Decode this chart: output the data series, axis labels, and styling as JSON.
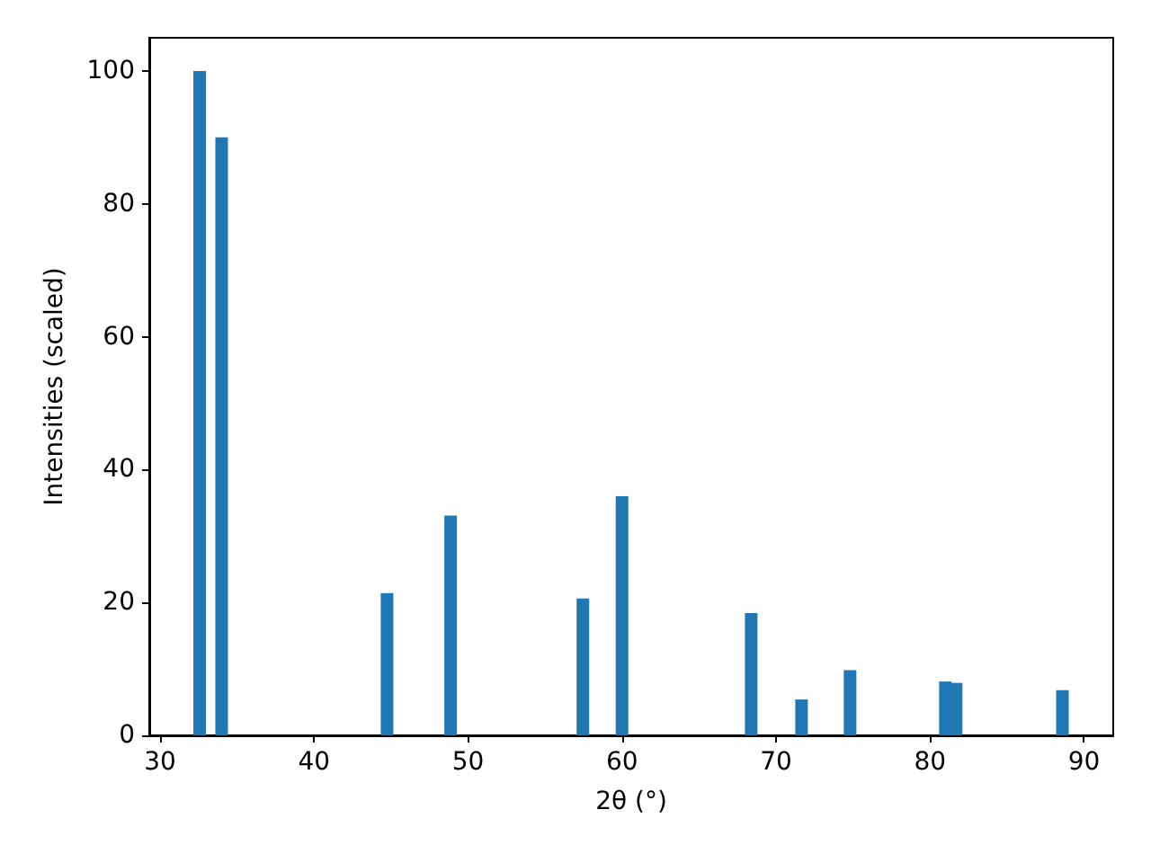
{
  "chart_data": {
    "type": "bar",
    "xlabel": "2θ (°)",
    "ylabel": "Intensities (scaled)",
    "x": [
      32.57,
      34.0,
      44.74,
      48.87,
      57.46,
      60.0,
      68.39,
      71.66,
      74.81,
      81.0,
      81.7,
      88.6
    ],
    "values": [
      100,
      90,
      21.4,
      33.1,
      20.6,
      36.0,
      18.4,
      5.4,
      9.8,
      8.1,
      7.9,
      6.8
    ],
    "color": "#1f77b4",
    "xlim": [
      29.3,
      91.9
    ],
    "ylim": [
      0,
      105
    ],
    "xticks": [
      30,
      40,
      50,
      60,
      70,
      80,
      90
    ],
    "yticks": [
      0,
      20,
      40,
      60,
      80,
      100
    ],
    "grid": false
  }
}
